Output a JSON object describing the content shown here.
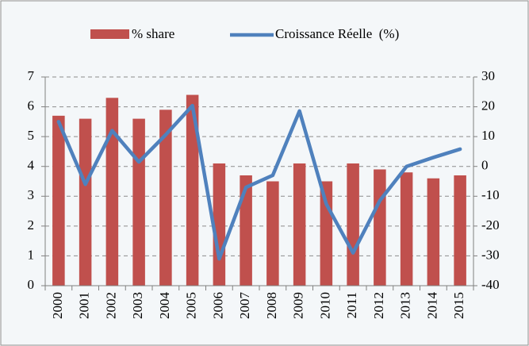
{
  "chart_data": {
    "type": "bar_line",
    "categories": [
      "2000",
      "2001",
      "2002",
      "2003",
      "2004",
      "2005",
      "2006",
      "2007",
      "2008",
      "2009",
      "2010",
      "2011",
      "2012",
      "2013",
      "2014",
      "2015"
    ],
    "series": [
      {
        "name": "% share",
        "type": "bar",
        "color": "#c0504d",
        "axis": "y",
        "values": [
          5.7,
          5.6,
          6.3,
          5.6,
          5.9,
          6.4,
          4.1,
          3.7,
          3.5,
          4.1,
          3.5,
          4.1,
          3.9,
          3.8,
          3.6,
          3.7
        ]
      },
      {
        "name": "Croissance Réelle  (%)",
        "type": "line",
        "color": "#4f81bd",
        "axis": "y2",
        "values": [
          15,
          -6,
          12,
          1.5,
          10.6,
          20.4,
          -31,
          -7,
          -3,
          18.6,
          -12.6,
          -29,
          -11.5,
          0,
          3,
          5.8
        ]
      }
    ],
    "ylim": [
      0,
      7
    ],
    "yticks": [
      0,
      1,
      2,
      3,
      4,
      5,
      6,
      7
    ],
    "y2lim": [
      -40,
      30
    ],
    "y2ticks": [
      -40,
      -30,
      -20,
      -10,
      0,
      10,
      20,
      30
    ],
    "grid": true,
    "legend": "top"
  }
}
